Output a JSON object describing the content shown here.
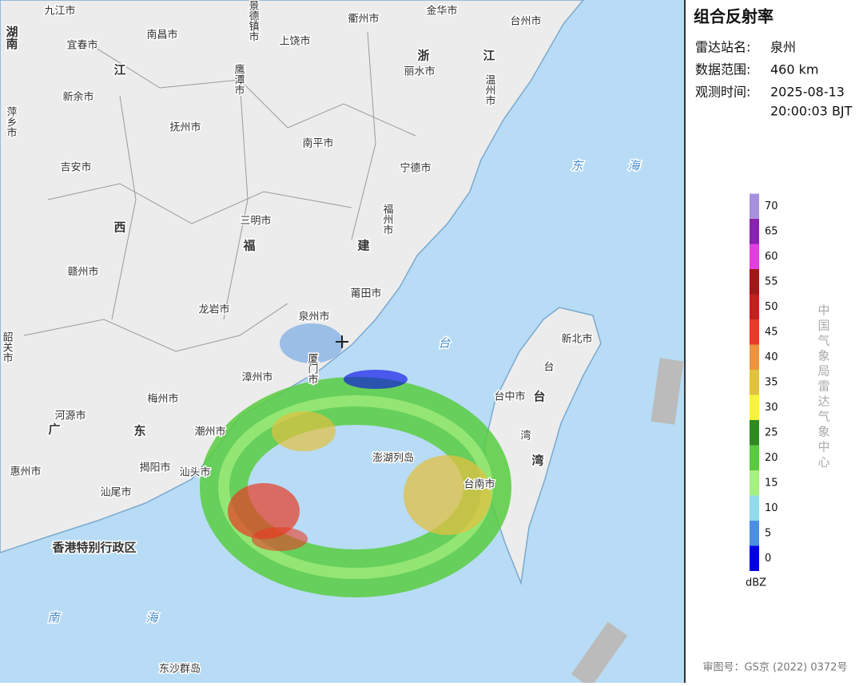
{
  "panel": {
    "title": "组合反射率",
    "station": {
      "label": "雷达站名:",
      "value": "泉州"
    },
    "range": {
      "label": "数据范围:",
      "value": "460 km"
    },
    "time": {
      "label": "观测时间:",
      "date": "2025-08-13",
      "clock": "20:00:03 BJT"
    }
  },
  "legend": {
    "ticks": [
      0,
      5,
      10,
      15,
      20,
      25,
      30,
      35,
      40,
      45,
      50,
      55,
      60,
      65,
      70
    ],
    "colors": [
      "#0000e6",
      "#4a90e2",
      "#8fdcea",
      "#a6f07e",
      "#58cc40",
      "#2e8b22",
      "#f6f43c",
      "#e2c040",
      "#ee9440",
      "#e83a24",
      "#c42020",
      "#a01818",
      "#e040e0",
      "#8a22b0",
      "#a890e0"
    ],
    "unit": "dBZ",
    "credit": "中国气象局雷达气象中心"
  },
  "map": {
    "labels": [
      "九江市",
      "景德镇市",
      "衢州市",
      "金华市",
      "台州市",
      "湖南",
      "宜春市",
      "南昌市",
      "上饶市",
      "江",
      "浙",
      "江",
      "丽水市",
      "温州市",
      "鹰潭市",
      "萍乡市",
      "新余市",
      "抚州市",
      "南平市",
      "吉安市",
      "宁德市",
      "东",
      "海",
      "西",
      "三明市",
      "福",
      "建",
      "福州市",
      "赣州市",
      "龙岩市",
      "莆田市",
      "泉州市",
      "韶关市",
      "漳州市",
      "厦门市",
      "台",
      "新北市",
      "台",
      "台中市",
      "台",
      "湾",
      "湾",
      "梅州市",
      "河源市",
      "广",
      "东",
      "潮州市",
      "揭阳市",
      "汕头市",
      "澎湖列岛",
      "台南市",
      "惠州市",
      "汕尾市",
      "香港特别行政区",
      "南",
      "海",
      "东沙群岛"
    ]
  },
  "footer": "审图号：GS京 (2022) 0372号"
}
